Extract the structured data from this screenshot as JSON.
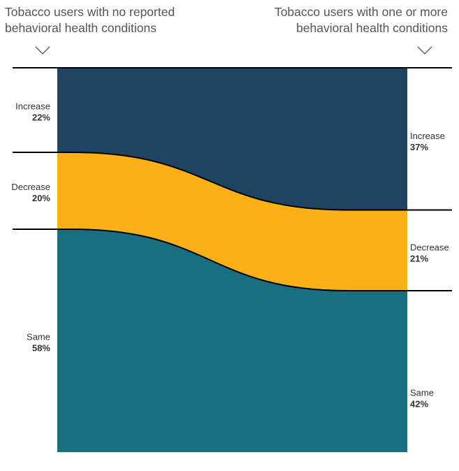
{
  "header": {
    "left": [
      "Tobacco users with no reported",
      "behavioral health conditions"
    ],
    "right": [
      "Tobacco users with one or more",
      "behavioral health conditions"
    ]
  },
  "colors": {
    "increase": "#1f4462",
    "decrease": "#fbb017",
    "same": "#196e80",
    "divider": "#000000"
  },
  "chart_data": {
    "type": "area",
    "title": "",
    "categories": [
      "Tobacco users with no reported behavioral health conditions",
      "Tobacco users with one or more behavioral health conditions"
    ],
    "series": [
      {
        "name": "Increase",
        "values": [
          22,
          37
        ],
        "color": "#1f4462"
      },
      {
        "name": "Decrease",
        "values": [
          20,
          21
        ],
        "color": "#fbb017"
      },
      {
        "name": "Same",
        "values": [
          58,
          42
        ],
        "color": "#196e80"
      }
    ],
    "labels": {
      "left": [
        {
          "name": "Increase",
          "pct": "22%"
        },
        {
          "name": "Decrease",
          "pct": "20%"
        },
        {
          "name": "Same",
          "pct": "58%"
        }
      ],
      "right": [
        {
          "name": "Increase",
          "pct": "37%"
        },
        {
          "name": "Decrease",
          "pct": "21%"
        },
        {
          "name": "Same",
          "pct": "42%"
        }
      ]
    }
  }
}
